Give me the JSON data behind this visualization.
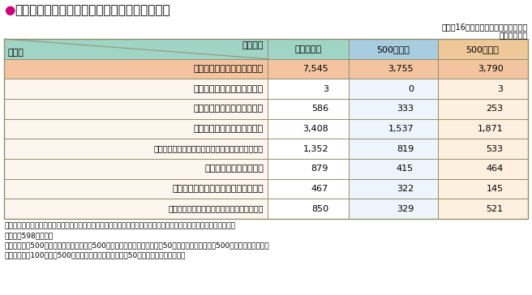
{
  "title_bullet": "●",
  "title_text": "資料３－４　産業別、企業規模別調査事業所数",
  "subtitle1": "（平成16年職種別民間給与実態調査）",
  "subtitle2": "（単位：所）",
  "col_header_left": "産　業",
  "col_header_right": "企業規模",
  "col3_hdr": "規　模　計",
  "col4_hdr": "500人以上",
  "col5_hdr": "500人未満",
  "rows": [
    [
      "産　　　　　業　　　　　計",
      "7,545",
      "3,755",
      "3,790"
    ],
    [
      "漁　　　　　　　　　　　業",
      "3",
      "0",
      "3"
    ],
    [
      "鉱　　業、　建　　設　　業",
      "586",
      "333",
      "253"
    ],
    [
      "製　　　　造　　　　　　業",
      "3,408",
      "1,537",
      "1,871"
    ],
    [
      "電気・ガス・熱供給・水道業、情報通信業、運輸業",
      "1,352",
      "819",
      "533"
    ],
    [
      "卸　売　・　小　売　業",
      "879",
      "415",
      "464"
    ],
    [
      "金　融・保　険　業、不　動　産　業",
      "467",
      "322",
      "145"
    ],
    [
      "医療、福祉、教育、学習支援業、サービス業",
      "850",
      "329",
      "521"
    ]
  ],
  "notes": [
    "（注）１　上記のほか、実地調査に際し、規模等が調査の対象外であることが判明した事業所及び調査不能の事業所が",
    "　　　　598あった。",
    "　　　２　「500人以上」とは、企業規模500人以上で、かつ、事業所規模50人以上の事業所を、「500人未満」とは、企業",
    "　　　　規模100人以上500人未満で、かつ、事業所規模50人以上の事業所をいう。"
  ],
  "bullet_color": "#cc0077",
  "header_bg": "#a0d4c4",
  "row0_bg": "#f4c4a0",
  "data_bg": "#fdf6ee",
  "col3_hdr_bg": "#a0d4c4",
  "col4_hdr_bg": "#a8cce0",
  "col5_hdr_bg": "#eec898",
  "col3_data_bg": "#ffffff",
  "col4_data_bg": "#eef4fc",
  "col5_data_bg": "#fef0e0",
  "row0_data_bg": "#f4c4a0",
  "border_color": "#909070",
  "text_color": "#000000",
  "title_fontsize": 11,
  "header_fontsize": 8,
  "data_fontsize": 8,
  "note_fontsize": 6.5,
  "subtitle_fontsize": 7
}
